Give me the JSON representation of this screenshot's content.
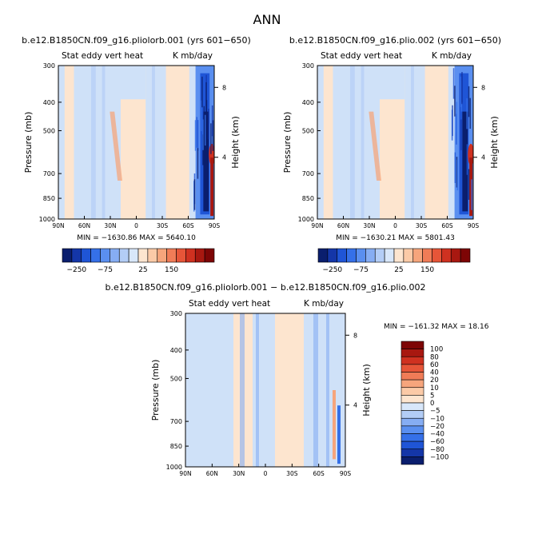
{
  "page_title": "ANN",
  "colors": {
    "neg": [
      "#0a1e6e",
      "#1436a8",
      "#1f55d6",
      "#3570e8",
      "#5a8ff0",
      "#86adf3",
      "#b3cdf6",
      "#d8e7fa"
    ],
    "pos": [
      "#fde5cf",
      "#fbcaa7",
      "#f6a57c",
      "#f07c57",
      "#e65538",
      "#cf3120",
      "#a81810",
      "#7d0505"
    ],
    "background_field": "#cfe1f8"
  },
  "chart_data": [
    {
      "type": "heatmap",
      "id": "panel_a",
      "title": "b.e12.B1850CN.f09_g16.pliolorb.001 (yrs 601−650)",
      "variable": "Stat eddy vert heat",
      "units": "K mb/day",
      "xlabel": "",
      "ylabel": "Pressure (mb)",
      "y2label": "Height (km)",
      "x_ticks": [
        "90N",
        "60N",
        "30N",
        "0",
        "30S",
        "60S",
        "90S"
      ],
      "y_ticks": [
        "300",
        "400",
        "500",
        "700",
        "850",
        "1000"
      ],
      "y2_ticks": [
        "8",
        "4"
      ],
      "stats": {
        "min_label": "MIN =",
        "min": -1630.86,
        "max_label": "MAX =",
        "max": 5640.1
      },
      "colorbar": {
        "orientation": "horizontal",
        "labels": [
          "−250",
          "−75",
          "25",
          "150"
        ]
      }
    },
    {
      "type": "heatmap",
      "id": "panel_b",
      "title": "b.e12.B1850CN.f09_g16.plio.002 (yrs 601−650)",
      "variable": "Stat eddy vert heat",
      "units": "K mb/day",
      "xlabel": "",
      "ylabel": "Pressure (mb)",
      "y2label": "Height (km)",
      "x_ticks": [
        "90N",
        "60N",
        "30N",
        "0",
        "30S",
        "60S",
        "90S"
      ],
      "y_ticks": [
        "300",
        "400",
        "500",
        "700",
        "850",
        "1000"
      ],
      "y2_ticks": [
        "8",
        "4"
      ],
      "stats": {
        "min_label": "MIN =",
        "min": -1630.21,
        "max_label": "MAX =",
        "max": 5801.43
      },
      "colorbar": {
        "orientation": "horizontal",
        "labels": [
          "−250",
          "−75",
          "25",
          "150"
        ]
      }
    },
    {
      "type": "heatmap",
      "id": "panel_diff",
      "title": "b.e12.B1850CN.f09_g16.pliolorb.001 − b.e12.B1850CN.f09_g16.plio.002",
      "variable": "Stat eddy vert heat",
      "units": "K mb/day",
      "xlabel": "",
      "ylabel": "Pressure (mb)",
      "y2label": "Height (km)",
      "x_ticks": [
        "90N",
        "60N",
        "30N",
        "0",
        "30S",
        "60S",
        "90S"
      ],
      "y_ticks": [
        "300",
        "400",
        "500",
        "700",
        "850",
        "1000"
      ],
      "y2_ticks": [
        "8",
        "4"
      ],
      "stats": {
        "min_label": "MIN =",
        "min": -161.32,
        "max_label": "MAX =",
        "max": 18.16
      },
      "colorbar": {
        "orientation": "vertical",
        "labels": [
          "100",
          "80",
          "60",
          "40",
          "20",
          "10",
          "5",
          "0",
          "−5",
          "−10",
          "−20",
          "−40",
          "−60",
          "−80",
          "−100"
        ]
      }
    }
  ]
}
